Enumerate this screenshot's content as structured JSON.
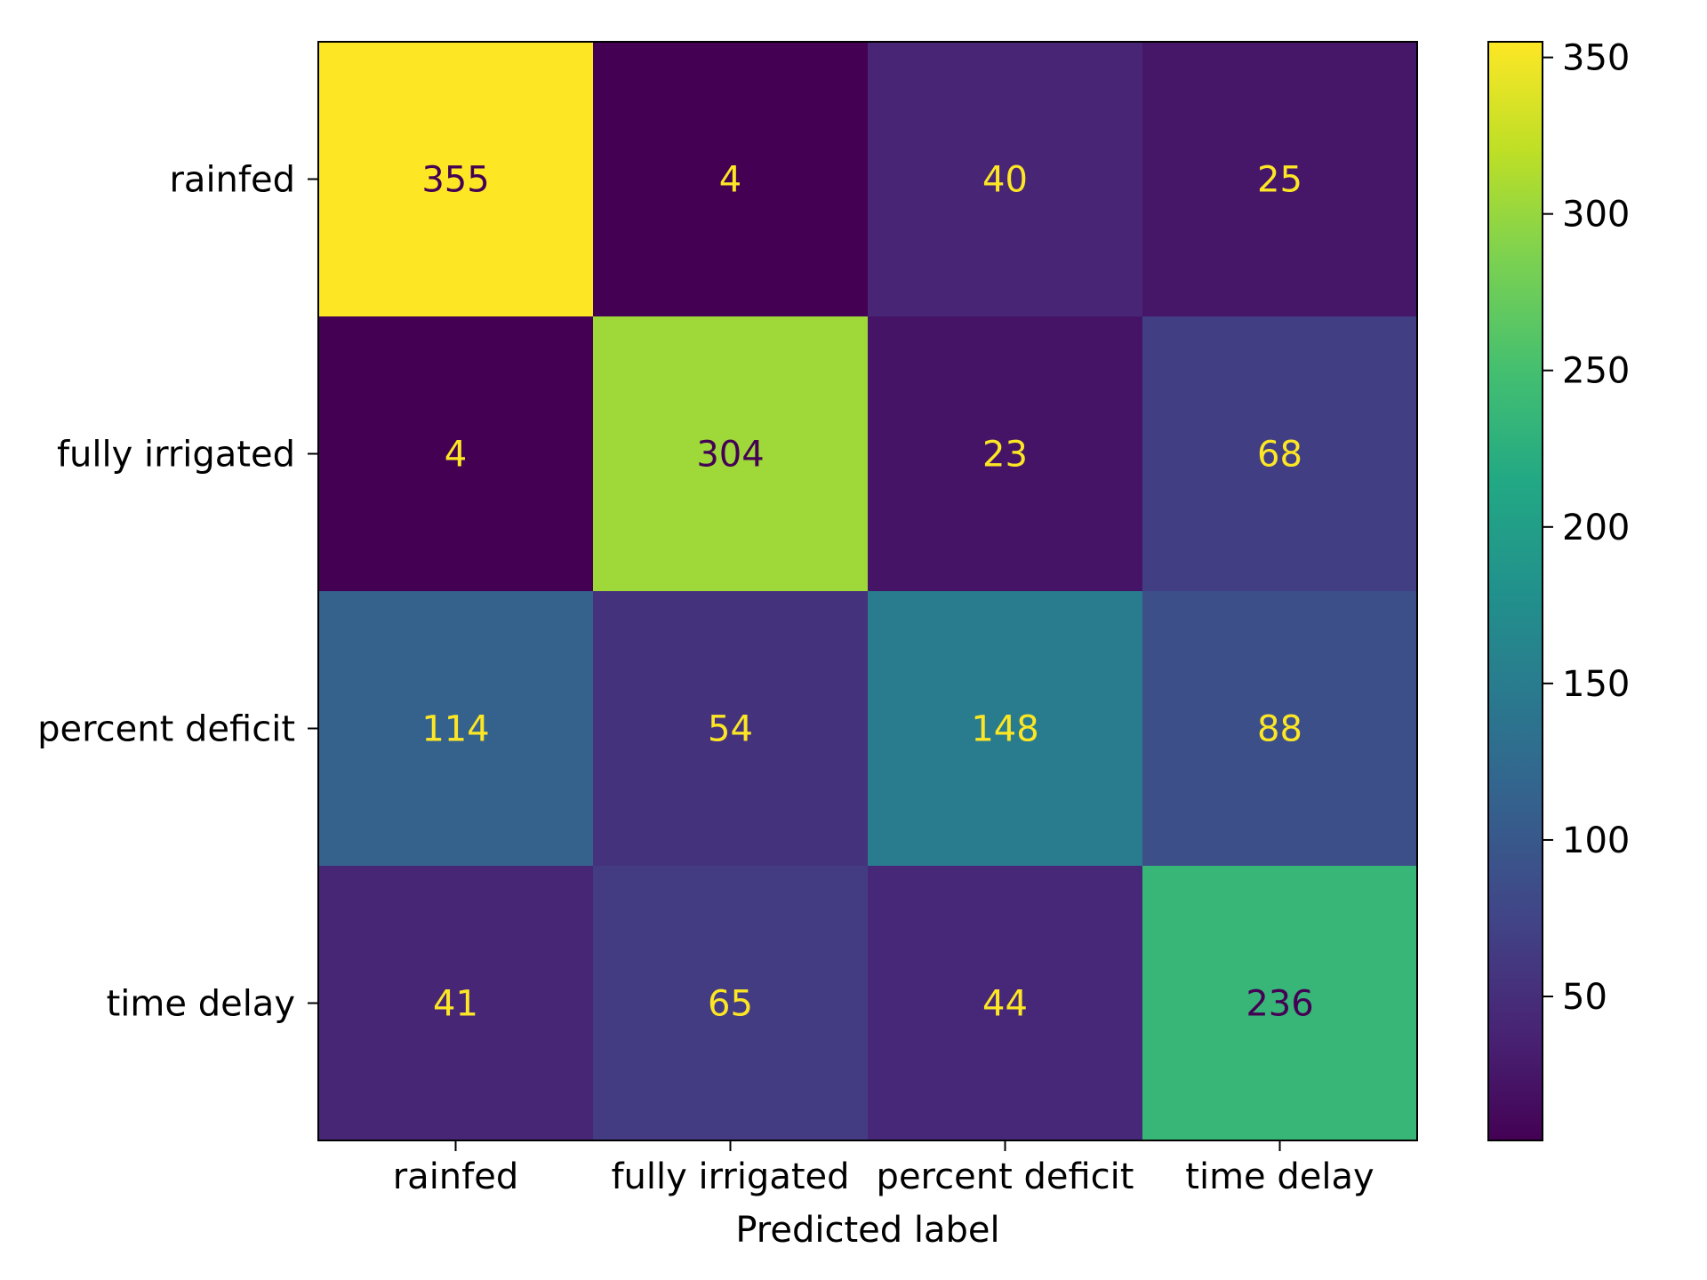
{
  "chart_data": {
    "type": "heatmap",
    "title": "",
    "xlabel": "Predicted label",
    "ylabel": "",
    "x_categories": [
      "rainfed",
      "fully irrigated",
      "percent deficit",
      "time delay"
    ],
    "y_categories": [
      "rainfed",
      "fully irrigated",
      "percent deficit",
      "time delay"
    ],
    "matrix": [
      [
        355,
        4,
        40,
        25
      ],
      [
        4,
        304,
        23,
        68
      ],
      [
        114,
        54,
        148,
        88
      ],
      [
        41,
        65,
        44,
        236
      ]
    ],
    "colormap": "viridis",
    "vmin": 4,
    "vmax": 355,
    "colorbar": {
      "ticks": [
        50,
        100,
        150,
        200,
        250,
        300,
        350
      ]
    },
    "text_colors": {
      "dark_cell": "#fde725",
      "light_cell": "#440154"
    }
  }
}
